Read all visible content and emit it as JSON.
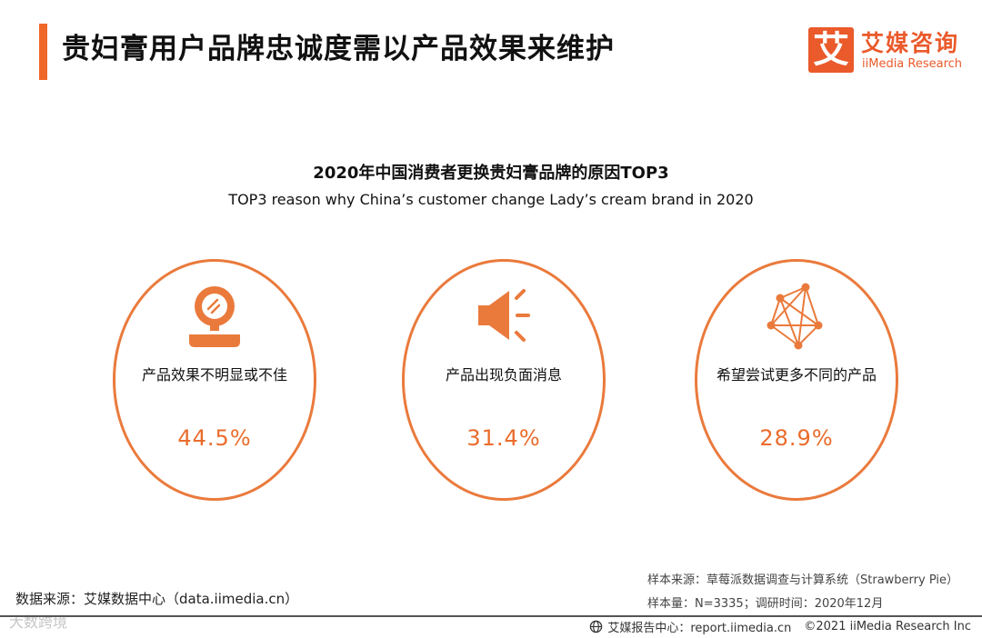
{
  "header": {
    "title": "贵妇膏用户品牌忠诚度需以产品效果来维护",
    "accent_color": "#f0672a"
  },
  "logo": {
    "mark": "艾",
    "name_cn": "艾媒咨询",
    "name_en": "iiMedia Research",
    "color": "#ea5a2b"
  },
  "chart": {
    "title": "2020年中国消费者更换贵妇膏品牌的原因TOP3",
    "subtitle": "TOP3 reason why China’s customer change Lady’s cream brand in 2020"
  },
  "chart_data": {
    "type": "table",
    "title": "2020年中国消费者更换贵妇膏品牌的原因TOP3",
    "subtitle": "TOP3 reason why China’s customer change Lady’s cream brand in 2020",
    "categories": [
      "产品效果不明显或不佳",
      "产品出现负面消息",
      "希望尝试更多不同的产品"
    ],
    "values": [
      44.5,
      31.4,
      28.9
    ],
    "unit": "%"
  },
  "reasons": [
    {
      "label": "产品效果不明显或不佳",
      "value": "44.5%",
      "icon": "mirror-icon"
    },
    {
      "label": "产品出现负面消息",
      "value": "31.4%",
      "icon": "megaphone-icon"
    },
    {
      "label": "希望尝试更多不同的产品",
      "value": "28.9%",
      "icon": "network-icon"
    }
  ],
  "source": {
    "data_source": "数据来源：艾媒数据中心（data.iimedia.cn）",
    "sample_source": "样本来源：草莓派数据调查与计算系统（Strawberry Pie）",
    "sample_size": "样本量：N=3335；调研时间：2020年12月"
  },
  "footer": {
    "report_center": "艾媒报告中心：report.iimedia.cn",
    "copyright": "©2021  iiMedia Research  Inc"
  },
  "watermark": "大数跨境",
  "colors": {
    "orange": "#ea7a3c",
    "value_orange": "#ea6c2c"
  }
}
